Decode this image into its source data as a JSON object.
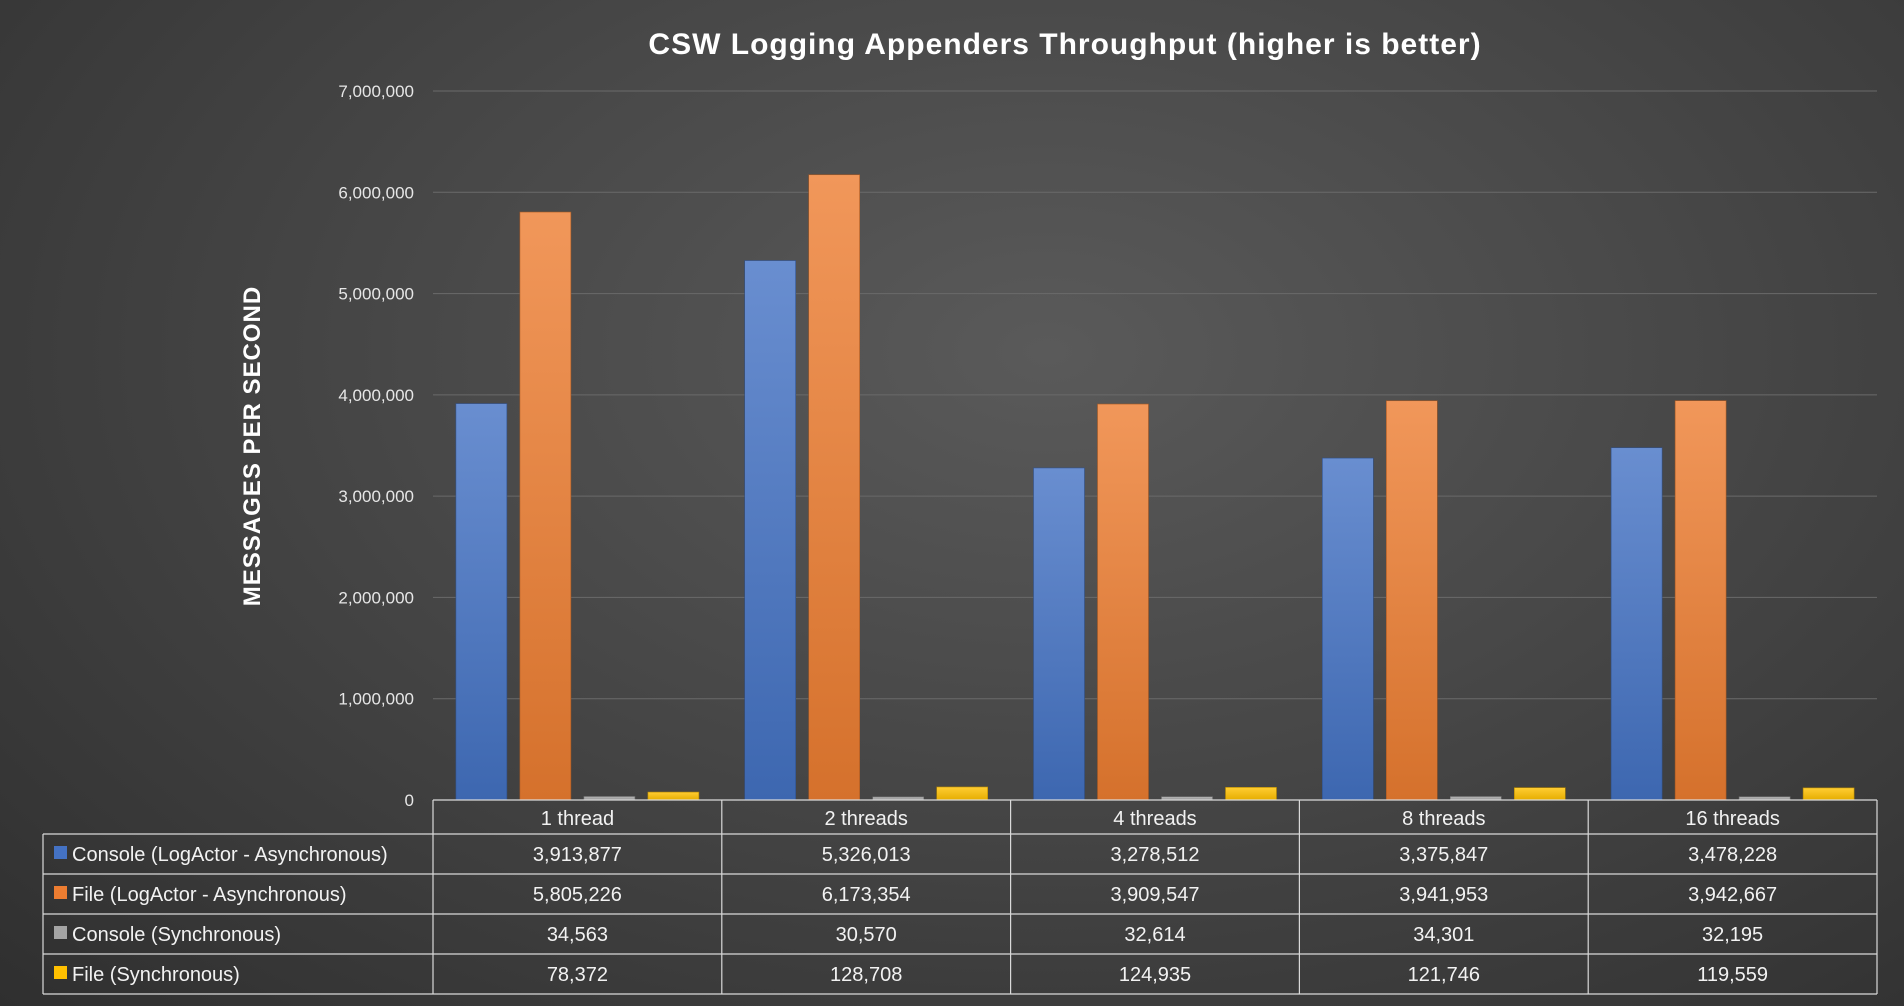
{
  "chart_data": {
    "type": "bar",
    "title": "CSW Logging Appenders Throughput (higher is better)",
    "ylabel": "MESSAGES PER SECOND",
    "xlabel": "",
    "ylim": [
      0,
      7000000
    ],
    "yticks": [
      "0",
      "1,000,000",
      "2,000,000",
      "3,000,000",
      "4,000,000",
      "5,000,000",
      "6,000,000",
      "7,000,000"
    ],
    "grid": true,
    "legend": "data-table",
    "categories": [
      "1 thread",
      "2 threads",
      "4 threads",
      "8 threads",
      "16 threads"
    ],
    "series": [
      {
        "name": "Console (LogActor - Asynchronous)",
        "color": "#4472c4",
        "values": [
          3913877,
          5326013,
          3278512,
          3375847,
          3478228
        ],
        "labels": [
          "3,913,877",
          "5,326,013",
          "3,278,512",
          "3,375,847",
          "3,478,228"
        ]
      },
      {
        "name": "File (LogActor - Asynchronous)",
        "color": "#ed7d31",
        "values": [
          5805226,
          6173354,
          3909547,
          3941953,
          3942667
        ],
        "labels": [
          "5,805,226",
          "6,173,354",
          "3,909,547",
          "3,941,953",
          "3,942,667"
        ]
      },
      {
        "name": "Console (Synchronous)",
        "color": "#a5a5a5",
        "values": [
          34563,
          30570,
          32614,
          34301,
          32195
        ],
        "labels": [
          "34,563",
          "30,570",
          "32,614",
          "34,301",
          "32,195"
        ]
      },
      {
        "name": "File (Synchronous)",
        "color": "#ffc000",
        "values": [
          78372,
          128708,
          124935,
          121746,
          119559
        ],
        "labels": [
          "78,372",
          "128,708",
          "124,935",
          "121,746",
          "119,559"
        ]
      }
    ]
  }
}
